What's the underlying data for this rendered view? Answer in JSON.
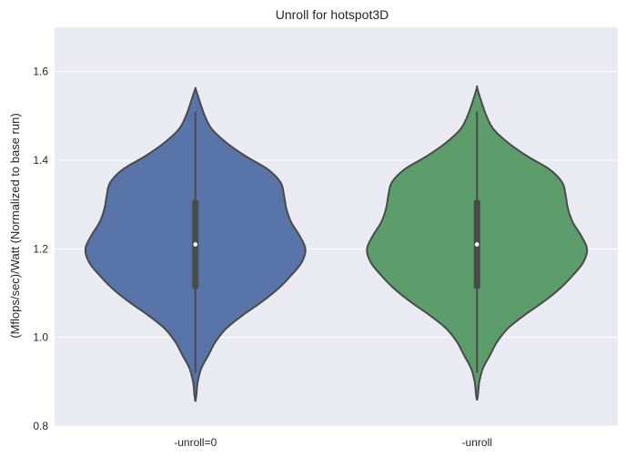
{
  "chart_data": {
    "type": "violin",
    "title": "Unroll for hotspot3D",
    "xlabel": "",
    "ylabel": "(Mflops/sec)/Watt (Normalized to base run)",
    "ylim": [
      0.8,
      1.7
    ],
    "yticks": [
      "0.8",
      "1.0",
      "1.2",
      "1.4",
      "1.6"
    ],
    "categories": [
      "-unroll=0",
      "-unroll"
    ],
    "grid": true,
    "background": "#eaeaf2",
    "series": [
      {
        "category": "-unroll=0",
        "color": "#5874a9",
        "min": 0.92,
        "max": 1.51,
        "q1": 1.11,
        "median": 1.21,
        "q3": 1.31,
        "density": [
          {
            "y": 0.855,
            "w": 0.0
          },
          {
            "y": 0.87,
            "w": 0.004
          },
          {
            "y": 0.9,
            "w": 0.01
          },
          {
            "y": 0.93,
            "w": 0.025
          },
          {
            "y": 0.96,
            "w": 0.055
          },
          {
            "y": 0.99,
            "w": 0.085
          },
          {
            "y": 1.02,
            "w": 0.13
          },
          {
            "y": 1.05,
            "w": 0.2
          },
          {
            "y": 1.08,
            "w": 0.28
          },
          {
            "y": 1.11,
            "w": 0.35
          },
          {
            "y": 1.14,
            "w": 0.405
          },
          {
            "y": 1.17,
            "w": 0.45
          },
          {
            "y": 1.2,
            "w": 0.465
          },
          {
            "y": 1.23,
            "w": 0.44
          },
          {
            "y": 1.26,
            "w": 0.405
          },
          {
            "y": 1.29,
            "w": 0.385
          },
          {
            "y": 1.32,
            "w": 0.375
          },
          {
            "y": 1.35,
            "w": 0.36
          },
          {
            "y": 1.38,
            "w": 0.305
          },
          {
            "y": 1.41,
            "w": 0.21
          },
          {
            "y": 1.44,
            "w": 0.13
          },
          {
            "y": 1.47,
            "w": 0.07
          },
          {
            "y": 1.5,
            "w": 0.04
          },
          {
            "y": 1.53,
            "w": 0.02
          },
          {
            "y": 1.55,
            "w": 0.008
          },
          {
            "y": 1.562,
            "w": 0.0
          }
        ]
      },
      {
        "category": "-unroll",
        "color": "#5d9d6b",
        "min": 0.92,
        "max": 1.51,
        "q1": 1.11,
        "median": 1.21,
        "q3": 1.31,
        "density": [
          {
            "y": 0.858,
            "w": 0.0
          },
          {
            "y": 0.87,
            "w": 0.004
          },
          {
            "y": 0.9,
            "w": 0.01
          },
          {
            "y": 0.93,
            "w": 0.025
          },
          {
            "y": 0.96,
            "w": 0.055
          },
          {
            "y": 0.99,
            "w": 0.085
          },
          {
            "y": 1.02,
            "w": 0.13
          },
          {
            "y": 1.05,
            "w": 0.2
          },
          {
            "y": 1.08,
            "w": 0.28
          },
          {
            "y": 1.11,
            "w": 0.35
          },
          {
            "y": 1.14,
            "w": 0.405
          },
          {
            "y": 1.17,
            "w": 0.45
          },
          {
            "y": 1.2,
            "w": 0.465
          },
          {
            "y": 1.23,
            "w": 0.44
          },
          {
            "y": 1.26,
            "w": 0.405
          },
          {
            "y": 1.29,
            "w": 0.385
          },
          {
            "y": 1.32,
            "w": 0.375
          },
          {
            "y": 1.35,
            "w": 0.36
          },
          {
            "y": 1.38,
            "w": 0.305
          },
          {
            "y": 1.41,
            "w": 0.21
          },
          {
            "y": 1.44,
            "w": 0.13
          },
          {
            "y": 1.47,
            "w": 0.07
          },
          {
            "y": 1.5,
            "w": 0.04
          },
          {
            "y": 1.53,
            "w": 0.02
          },
          {
            "y": 1.55,
            "w": 0.008
          },
          {
            "y": 1.565,
            "w": 0.0
          }
        ]
      }
    ]
  }
}
